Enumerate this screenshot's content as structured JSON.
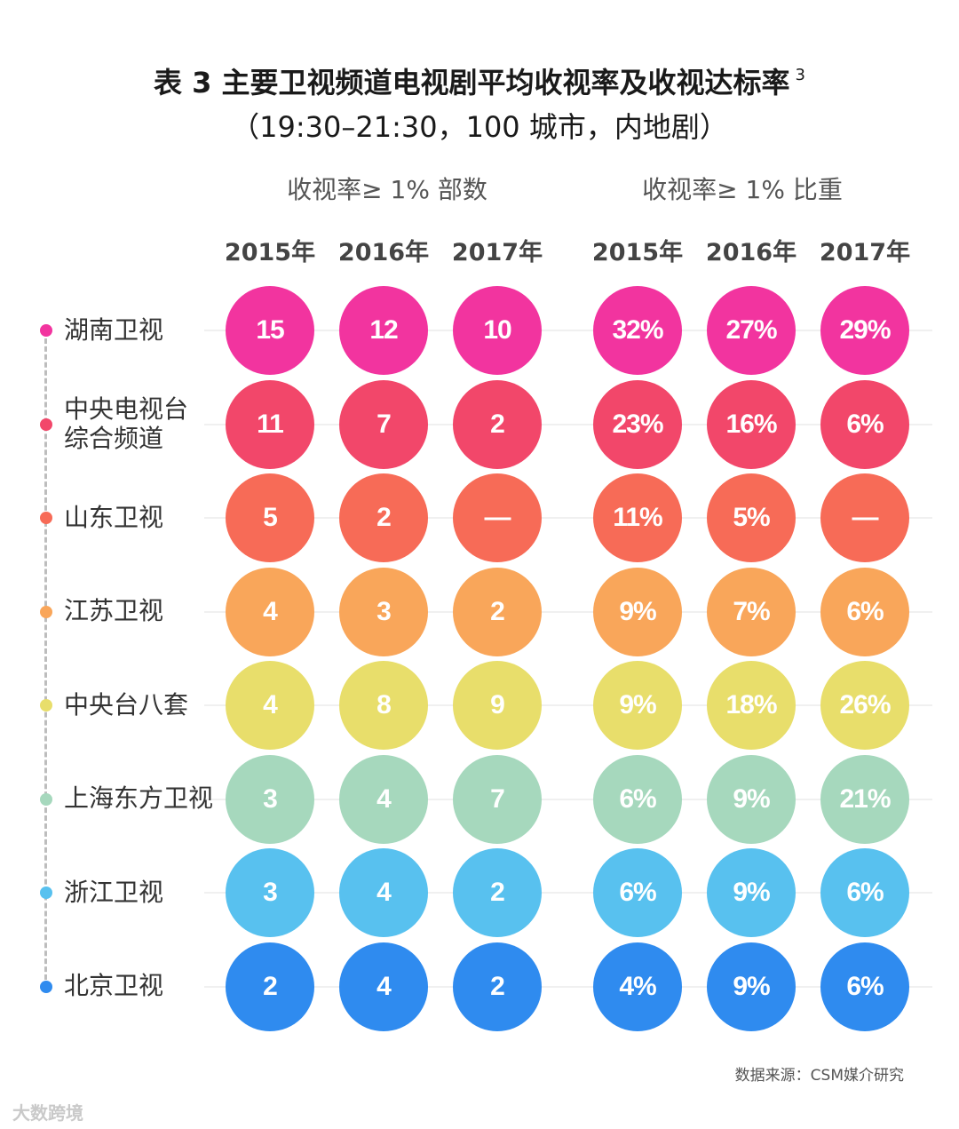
{
  "title": {
    "line1": "表 3 主要卫视频道电视剧平均收视率及收视达标率",
    "superscript": "3",
    "line2": "（19:30–21:30，100 城市，内地剧）"
  },
  "source": "数据来源：CSM媒介研究",
  "watermark": "大数跨境",
  "chart_data": {
    "type": "table",
    "groups": [
      {
        "label": "收视率≥ 1% 部数",
        "years": [
          "2015年",
          "2016年",
          "2017年"
        ]
      },
      {
        "label": "收视率≥ 1% 比重",
        "years": [
          "2015年",
          "2016年",
          "2017年"
        ]
      }
    ],
    "rows": [
      {
        "channel": "湖南卫视",
        "color": "#f2349f",
        "values": [
          "15",
          "12",
          "10",
          "32%",
          "27%",
          "29%"
        ]
      },
      {
        "channel": "中央电视台\n综合频道",
        "color": "#f2476a",
        "values": [
          "11",
          "7",
          "2",
          "23%",
          "16%",
          "6%"
        ]
      },
      {
        "channel": "山东卫视",
        "color": "#f76b57",
        "values": [
          "5",
          "2",
          "—",
          "11%",
          "5%",
          "—"
        ]
      },
      {
        "channel": "江苏卫视",
        "color": "#f9a65a",
        "values": [
          "4",
          "3",
          "2",
          "9%",
          "7%",
          "6%"
        ]
      },
      {
        "channel": "中央台八套",
        "color": "#e8de6b",
        "values": [
          "4",
          "8",
          "9",
          "9%",
          "18%",
          "26%"
        ]
      },
      {
        "channel": "上海东方卫视",
        "color": "#a6d8bd",
        "values": [
          "3",
          "4",
          "7",
          "6%",
          "9%",
          "21%"
        ]
      },
      {
        "channel": "浙江卫视",
        "color": "#58c1ef",
        "values": [
          "3",
          "4",
          "2",
          "6%",
          "9%",
          "6%"
        ]
      },
      {
        "channel": "北京卫视",
        "color": "#2f8bef",
        "values": [
          "2",
          "4",
          "2",
          "4%",
          "9%",
          "6%"
        ]
      }
    ]
  }
}
